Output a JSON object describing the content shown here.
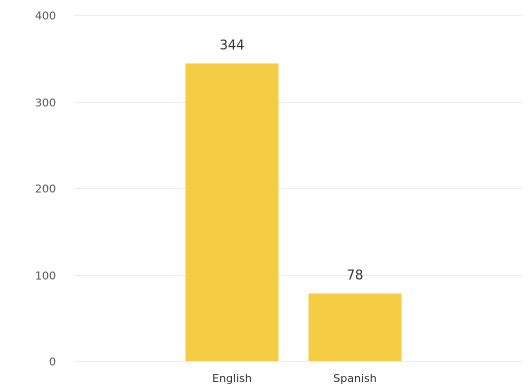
{
  "chart_data": {
    "type": "bar",
    "categories": [
      "English",
      "Spanish"
    ],
    "values": [
      344,
      78
    ],
    "data_labels": [
      "344",
      "78"
    ],
    "title": "",
    "xlabel": "",
    "ylabel": "",
    "ylim": [
      0,
      400
    ],
    "yticks": [
      0,
      100,
      200,
      300,
      400
    ],
    "grid": true,
    "bar_color": "#f5cd45",
    "grid_color": "#ececec"
  }
}
